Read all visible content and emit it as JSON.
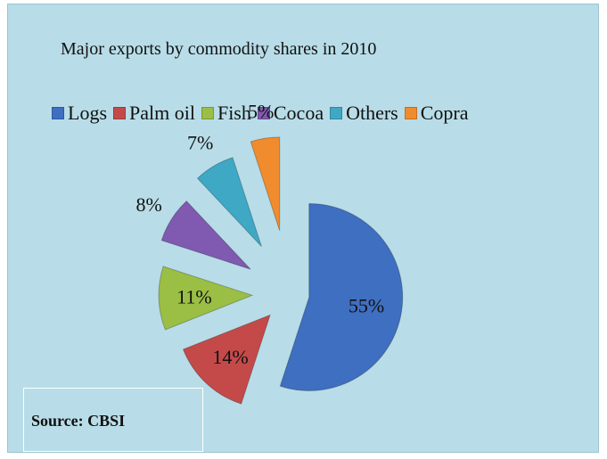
{
  "chart_data": {
    "type": "pie",
    "title": "Major exports by commodity shares in 2010",
    "categories": [
      "Logs",
      "Palm oil",
      "Fish",
      "Cocoa",
      "Others",
      "Copra"
    ],
    "values": [
      55,
      14,
      11,
      8,
      7,
      5
    ],
    "value_labels": [
      "55%",
      "14%",
      "11%",
      "8%",
      "7%",
      "5%"
    ],
    "colors": [
      "#3f6fc1",
      "#c44a4a",
      "#9bbe45",
      "#7f5ab0",
      "#3fa8c5",
      "#f08c2e"
    ],
    "legend_position": "top",
    "exploded": true
  },
  "source": {
    "text": "Source: CBSI"
  }
}
